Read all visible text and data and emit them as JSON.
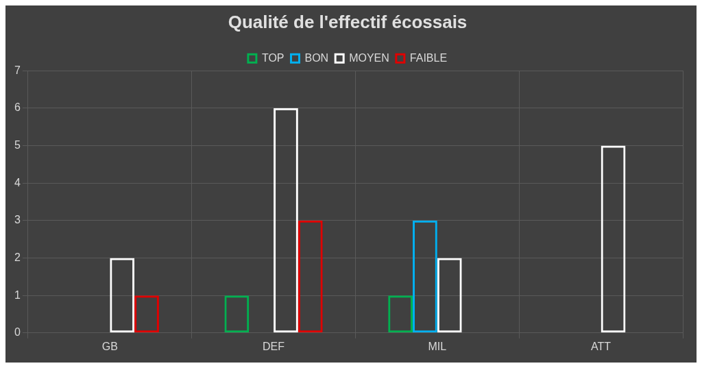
{
  "chart_data": {
    "type": "bar",
    "title": "Qualité de l'effectif écossais",
    "categories": [
      "GB",
      "DEF",
      "MIL",
      "ATT"
    ],
    "series": [
      {
        "name": "TOP",
        "color": "#00b050",
        "values": [
          0,
          1,
          1,
          0
        ]
      },
      {
        "name": "BON",
        "color": "#00b0f0",
        "values": [
          0,
          0,
          3,
          0
        ]
      },
      {
        "name": "MOYEN",
        "color": "#ffffff",
        "values": [
          2,
          6,
          2,
          5
        ]
      },
      {
        "name": "FAIBLE",
        "color": "#e00000",
        "values": [
          1,
          3,
          0,
          0
        ]
      }
    ],
    "ylim": [
      0,
      7
    ],
    "yticks": [
      0,
      1,
      2,
      3,
      4,
      5,
      6,
      7
    ],
    "grid": true,
    "legend": "top"
  }
}
